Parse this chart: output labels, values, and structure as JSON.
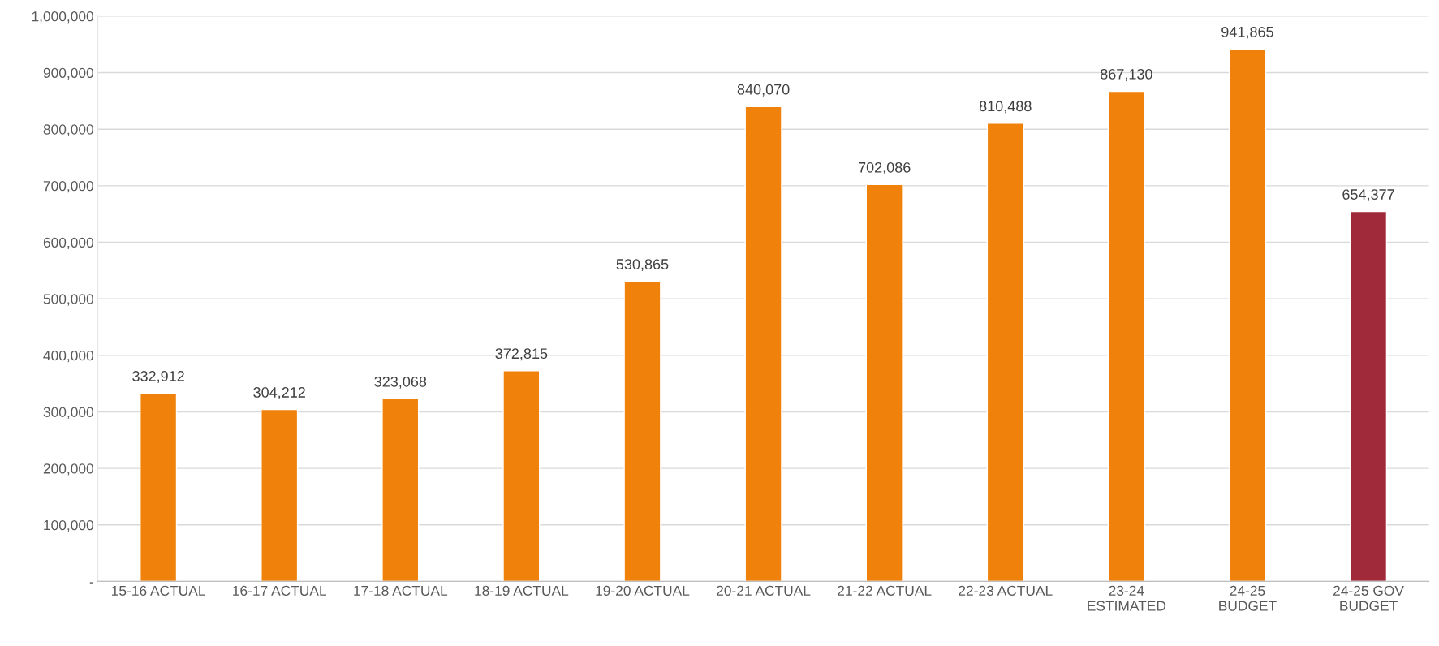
{
  "chart_data": {
    "type": "bar",
    "categories": [
      "15-16 ACTUAL",
      "16-17 ACTUAL",
      "17-18 ACTUAL",
      "18-19 ACTUAL",
      "19-20 ACTUAL",
      "20-21 ACTUAL",
      "21-22 ACTUAL",
      "22-23 ACTUAL",
      "23-24\nESTIMATED",
      "24-25\nBUDGET",
      "24-25 GOV\nBUDGET"
    ],
    "values": [
      332912,
      304212,
      323068,
      372815,
      530865,
      840070,
      702086,
      810488,
      867130,
      941865,
      654377
    ],
    "colors": [
      "#f0810a",
      "#f0810a",
      "#f0810a",
      "#f0810a",
      "#f0810a",
      "#f0810a",
      "#f0810a",
      "#f0810a",
      "#f0810a",
      "#f0810a",
      "#a12a3a"
    ],
    "ylim": [
      0,
      1000000
    ],
    "yticks": [
      {
        "value": 0,
        "label": "-"
      },
      {
        "value": 100000,
        "label": "100,000"
      },
      {
        "value": 200000,
        "label": "200,000"
      },
      {
        "value": 300000,
        "label": "300,000"
      },
      {
        "value": 400000,
        "label": "400,000"
      },
      {
        "value": 500000,
        "label": "500,000"
      },
      {
        "value": 600000,
        "label": "600,000"
      },
      {
        "value": 700000,
        "label": "700,000"
      },
      {
        "value": 800000,
        "label": "800,000"
      },
      {
        "value": 900000,
        "label": "900,000"
      },
      {
        "value": 1000000,
        "label": "1,000,000"
      }
    ],
    "value_labels": [
      "332,912",
      "304,212",
      "323,068",
      "372,815",
      "530,865",
      "840,070",
      "702,086",
      "810,488",
      "867,130",
      "941,865",
      "654,377"
    ],
    "grid": "y"
  }
}
